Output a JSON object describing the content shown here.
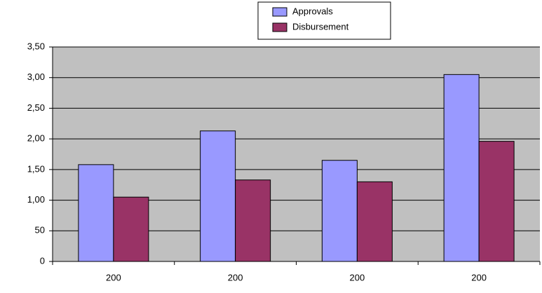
{
  "chart_data": {
    "type": "bar",
    "categories": [
      "200",
      "200",
      "200",
      "200"
    ],
    "series": [
      {
        "name": "Approvals",
        "color": "#9999ff",
        "values": [
          158,
          213,
          165,
          305
        ]
      },
      {
        "name": "Disbursement",
        "color": "#993366",
        "values": [
          105,
          133,
          130,
          196
        ]
      }
    ],
    "ylim": [
      0,
      350
    ],
    "yticks": [
      0,
      50,
      {
        "value": 100,
        "label": "1,00"
      },
      {
        "value": 150,
        "label": "1,50"
      },
      {
        "value": 200,
        "label": "2,00"
      },
      {
        "value": 250,
        "label": "2,50"
      },
      {
        "value": 300,
        "label": "3,00"
      },
      {
        "value": 350,
        "label": "3,50"
      }
    ],
    "grid": true,
    "legend": "top"
  }
}
